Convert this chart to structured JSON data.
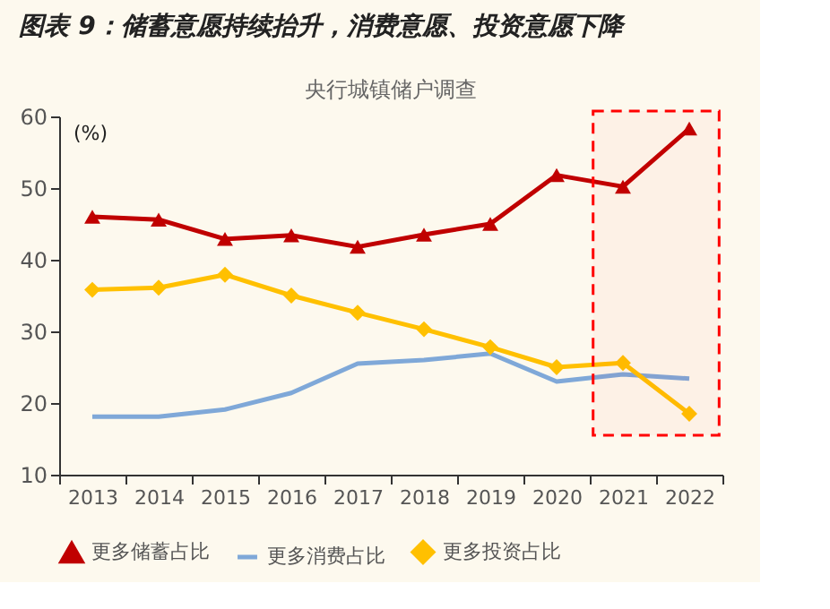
{
  "chart_data": {
    "type": "line",
    "title": "图表 9：储蓄意愿持续抬升，消费意愿、投资意愿下降",
    "subtitle": "央行城镇储户调查",
    "ylabel": "(%)",
    "categories": [
      "2013",
      "2014",
      "2015",
      "2016",
      "2017",
      "2018",
      "2019",
      "2020",
      "2021",
      "2022"
    ],
    "series": [
      {
        "name": "更多储蓄占比",
        "color": "#c00000",
        "marker": "triangle",
        "values": [
          46.0,
          45.6,
          42.9,
          43.4,
          41.8,
          43.5,
          45.0,
          51.8,
          50.2,
          58.3
        ]
      },
      {
        "name": "更多消费占比",
        "color": "#7fa8d8",
        "marker": "none",
        "values": [
          18.1,
          18.1,
          19.1,
          21.4,
          25.5,
          26.0,
          26.9,
          23.0,
          24.0,
          23.4
        ]
      },
      {
        "name": "更多投资占比",
        "color": "#ffc000",
        "marker": "diamond",
        "values": [
          35.8,
          36.1,
          37.9,
          35.0,
          32.6,
          30.3,
          27.8,
          25.0,
          25.6,
          18.5
        ]
      }
    ],
    "ylim": [
      10,
      60
    ],
    "yticks": [
      10,
      20,
      30,
      40,
      50,
      60
    ],
    "grid": false,
    "legend": "bottom",
    "line_style": "solid",
    "bands": [
      {
        "axis": "x",
        "from": "2021",
        "to": "2022",
        "color": "#ff0000"
      }
    ]
  }
}
